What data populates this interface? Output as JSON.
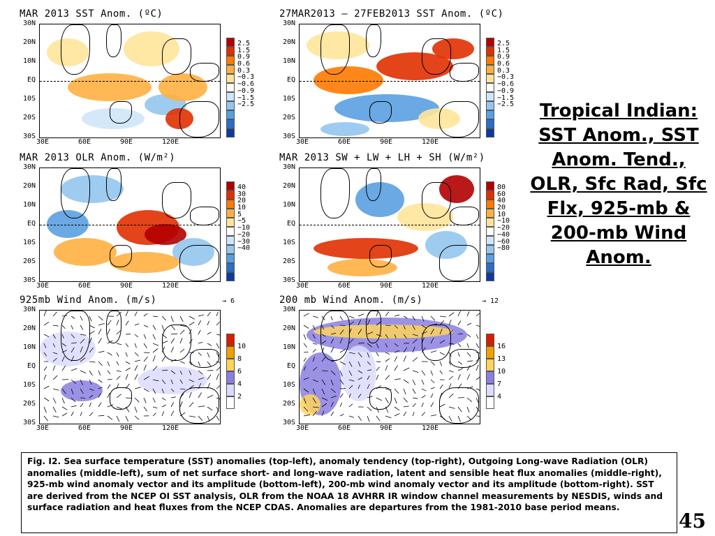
{
  "panels": [
    {
      "title": "MAR 2013 SST Anom. (ºC)",
      "colorbar": {
        "labels": [
          "2.5",
          "1.5",
          "0.9",
          "0.6",
          "0.3",
          "−0.3",
          "−0.6",
          "−0.9",
          "−1.5",
          "−2.5"
        ]
      }
    },
    {
      "title": "27MAR2013 – 27FEB2013 SST Anom. (ºC)",
      "colorbar": {
        "labels": [
          "2.5",
          "1.5",
          "0.9",
          "0.6",
          "0.3",
          "−0.3",
          "−0.6",
          "−0.9",
          "−1.5",
          "−2.5"
        ]
      }
    },
    {
      "title": "MAR 2013 OLR Anom. (W/m²)",
      "colorbar": {
        "labels": [
          "40",
          "30",
          "20",
          "10",
          "5",
          "−5",
          "−10",
          "−20",
          "−30",
          "−40"
        ]
      }
    },
    {
      "title": "MAR 2013 SW + LW + LH + SH (W/m²)",
      "colorbar": {
        "labels": [
          "80",
          "60",
          "40",
          "20",
          "10",
          "−10",
          "−20",
          "−40",
          "−60",
          "−80"
        ]
      }
    },
    {
      "title": "925mb Wind Anom. (m/s)",
      "ref_vector": "6",
      "colorbar": {
        "labels": [
          "10",
          "8",
          "6",
          "4",
          "2"
        ]
      }
    },
    {
      "title": "200 mb Wind Anom. (m/s)",
      "ref_vector": "12",
      "colorbar": {
        "labels": [
          "16",
          "13",
          "10",
          "7",
          "4"
        ]
      }
    }
  ],
  "axes": {
    "lat_labels": [
      "30N",
      "20N",
      "10N",
      "EQ",
      "10S",
      "20S",
      "30S"
    ],
    "lon_labels": [
      "30E",
      "60E",
      "90E",
      "120E"
    ]
  },
  "colors": {
    "anom_scale": [
      "#b20000",
      "#e03000",
      "#ff7a00",
      "#ffb040",
      "#ffe49a",
      "#ffffff",
      "#cfe6f8",
      "#94c6ee",
      "#5aa0e0",
      "#2a6dcc",
      "#0c3aa0"
    ],
    "wind_low_scale": [
      "#ffffff",
      "#dcdcff",
      "#8a7fe0",
      "#ffd35c",
      "#f0a000",
      "#d81d00"
    ]
  },
  "heading": "Tropical Indian: SST Anom., SST Anom. Tend., OLR, Sfc Rad, Sfc Flx, 925-mb & 200-mb Wind Anom.",
  "caption": "Fig. I2. Sea surface temperature (SST) anomalies (top-left), anomaly tendency (top-right), Outgoing Long-wave Radiation (OLR) anomalies (middle-left), sum of net surface short- and long-wave radiation, latent and sensible heat flux anomalies (middle-right), 925-mb wind anomaly vector and its amplitude (bottom-left), 200-mb wind anomaly vector and its amplitude  (bottom-right). SST are derived from the NCEP OI SST analysis, OLR from the NOAA 18 AVHRR IR window channel measurements by NESDIS, winds and surface radiation and heat fluxes from the NCEP CDAS. Anomalies are  departures from the 1981-2010 base period means.",
  "page_number": "45"
}
